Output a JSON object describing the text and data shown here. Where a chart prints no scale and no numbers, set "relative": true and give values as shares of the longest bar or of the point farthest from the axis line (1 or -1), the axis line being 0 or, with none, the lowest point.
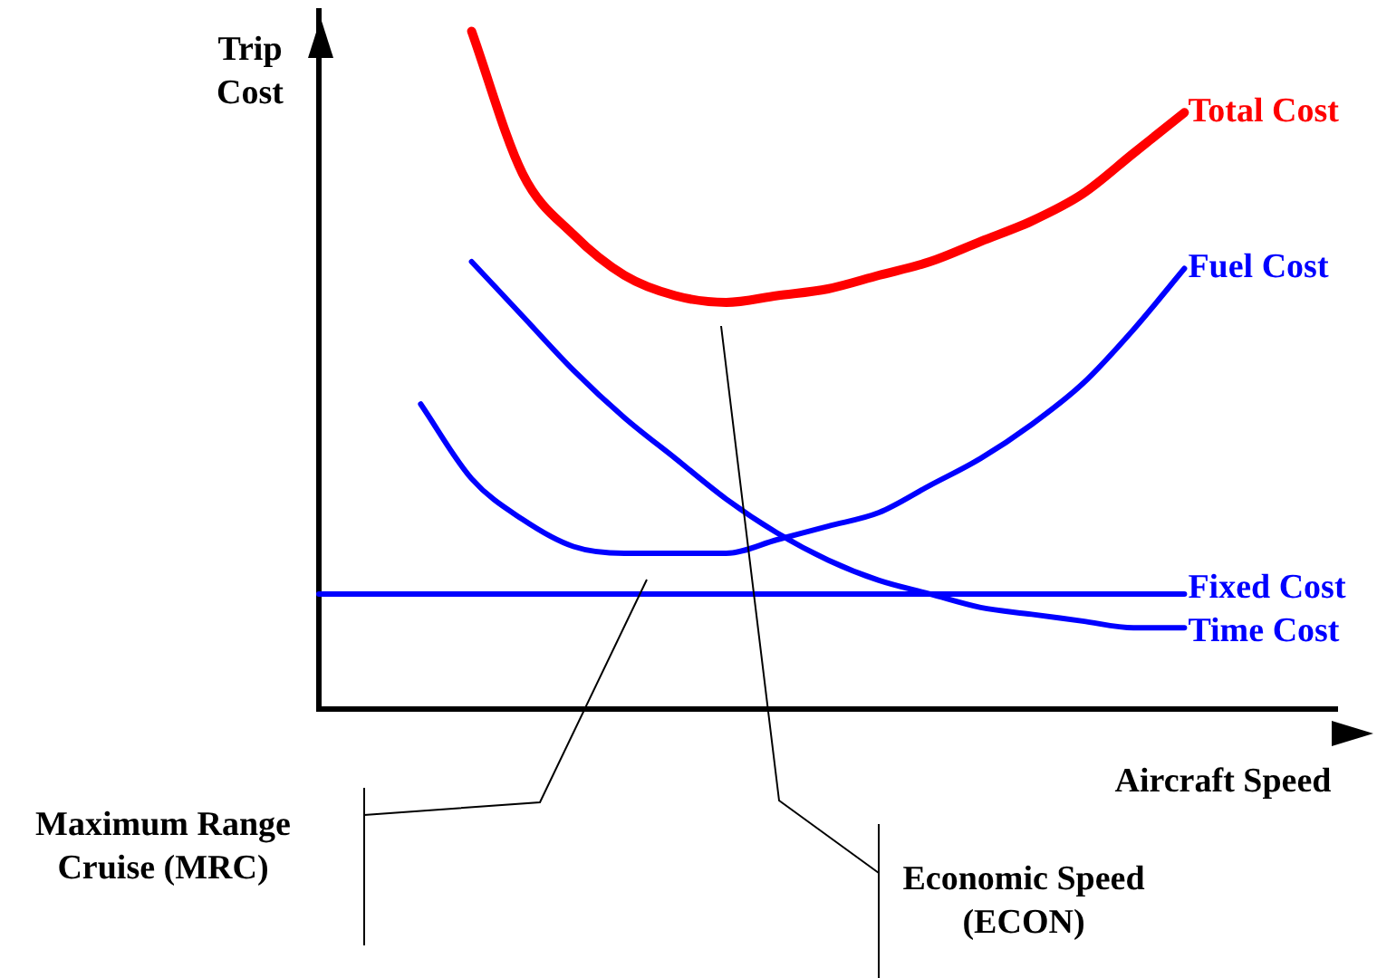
{
  "chart_data": {
    "type": "line",
    "relative": true,
    "xlabel": "Aircraft Speed",
    "ylabel": "Trip Cost",
    "legend": false,
    "grid": false,
    "marker": "none",
    "line_style": "solid",
    "categories": [
      null,
      null,
      null,
      null,
      null,
      null,
      null,
      null,
      null,
      null,
      null,
      null,
      null,
      null,
      null,
      null,
      null,
      null,
      null,
      null,
      null
    ],
    "series": [
      {
        "name": "Total Cost",
        "color": "#ff0000",
        "values": [
          null,
          null,
          null,
          1,
          0.79,
          0.7,
          0.64,
          0.61,
          0.6,
          0.61,
          0.62,
          0.64,
          0.66,
          0.69,
          0.72,
          0.76,
          0.82,
          0.88,
          null,
          null,
          null
        ]
      },
      {
        "name": "Fuel Cost",
        "color": "#0000ff",
        "values": [
          null,
          null,
          0.45,
          0.34,
          0.28,
          0.24,
          0.23,
          0.23,
          0.23,
          0.25,
          0.27,
          0.29,
          0.33,
          0.37,
          0.42,
          0.48,
          0.56,
          0.65,
          null,
          null,
          null
        ]
      },
      {
        "name": "Fixed Cost",
        "color": "#0000ff",
        "values": [
          0.17,
          0.17,
          0.17,
          0.17,
          0.17,
          0.17,
          0.17,
          0.17,
          0.17,
          0.17,
          0.17,
          0.17,
          0.17,
          0.17,
          0.17,
          0.17,
          0.17,
          0.17,
          null,
          null,
          null
        ]
      },
      {
        "name": "Time Cost",
        "color": "#0000ff",
        "values": [
          null,
          null,
          null,
          0.66,
          0.58,
          0.5,
          0.43,
          0.37,
          0.31,
          0.26,
          0.22,
          0.19,
          0.17,
          0.15,
          0.14,
          0.13,
          0.12,
          0.12,
          null,
          null,
          null
        ]
      }
    ],
    "annotations": [
      "Maximum Range Cruise (MRC)",
      "Economic Speed (ECON)"
    ]
  }
}
